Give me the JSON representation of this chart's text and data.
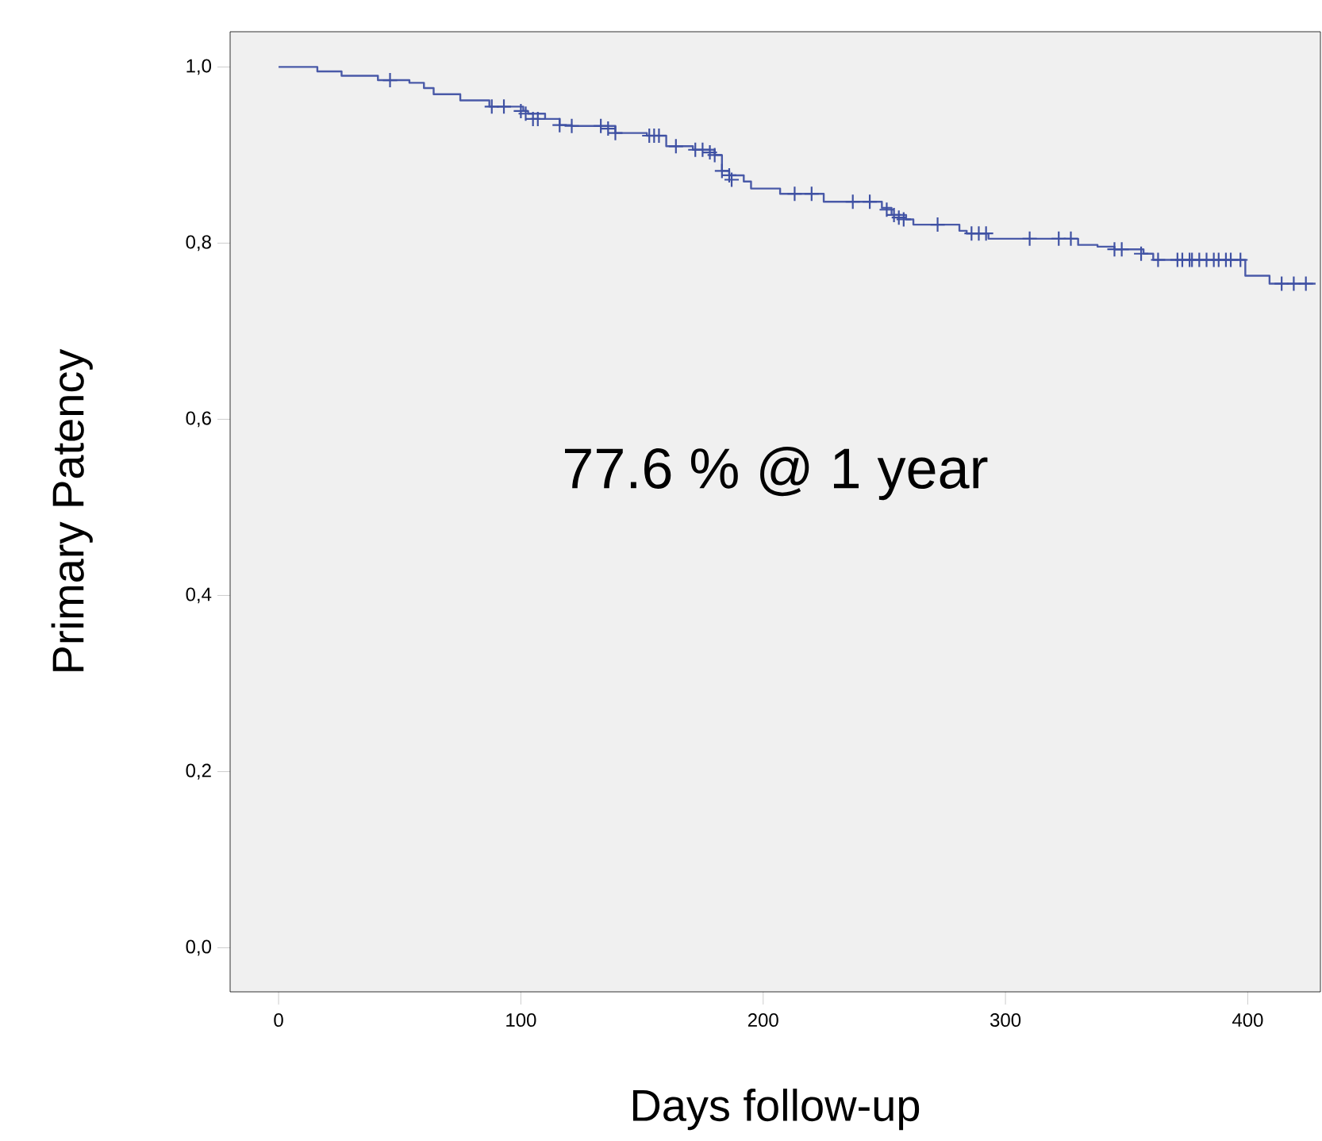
{
  "chart_data": {
    "type": "step",
    "xlabel": "Days follow-up",
    "ylabel": "Primary Patency",
    "annotations": [
      "77.6 % @ 1 year"
    ],
    "xlim": [
      -20,
      430
    ],
    "ylim": [
      -0.05,
      1.04
    ],
    "xticks": [
      0,
      100,
      200,
      300,
      400
    ],
    "yticks": [
      {
        "value": 0,
        "label": "0,0"
      },
      {
        "value": 0.2,
        "label": "0,2"
      },
      {
        "value": 0.4,
        "label": "0,4"
      },
      {
        "value": 0.6,
        "label": "0,6"
      },
      {
        "value": 0.8,
        "label": "0,8"
      },
      {
        "value": 1.0,
        "label": "1,0"
      }
    ],
    "grid": false,
    "series": [
      {
        "marker": "none",
        "color": "#4a5aa8",
        "x": [
          0,
          16,
          26,
          41,
          54,
          60,
          64,
          75,
          87,
          101,
          103,
          110,
          116,
          121,
          139,
          152,
          160,
          171,
          180,
          183,
          186,
          192,
          195,
          207,
          225,
          249,
          253,
          259,
          262,
          281,
          284,
          293,
          330,
          338,
          345,
          357,
          361,
          399,
          409,
          428
        ],
        "values": [
          1.0,
          0.995,
          0.99,
          0.985,
          0.982,
          0.976,
          0.969,
          0.962,
          0.955,
          0.95,
          0.947,
          0.941,
          0.934,
          0.933,
          0.925,
          0.922,
          0.91,
          0.906,
          0.9,
          0.882,
          0.877,
          0.87,
          0.862,
          0.856,
          0.847,
          0.84,
          0.832,
          0.827,
          0.821,
          0.814,
          0.811,
          0.805,
          0.798,
          0.796,
          0.793,
          0.788,
          0.781,
          0.763,
          0.754,
          0.754
        ]
      },
      {
        "type": "scatter",
        "marker": "cross",
        "color": "#3f51a3",
        "x": [
          46,
          88,
          93,
          100,
          102,
          105,
          107,
          116,
          121,
          133,
          136,
          139,
          153,
          155,
          157,
          164,
          172,
          175,
          178,
          180,
          183,
          186,
          187,
          213,
          220,
          237,
          244,
          251,
          254,
          256,
          258,
          272,
          286,
          289,
          292,
          310,
          322,
          327,
          345,
          348,
          356,
          363,
          371,
          373,
          376,
          377,
          380,
          383,
          386,
          388,
          391,
          393,
          397,
          414,
          419,
          424
        ],
        "values": [
          0.985,
          0.955,
          0.955,
          0.95,
          0.947,
          0.941,
          0.941,
          0.934,
          0.933,
          0.933,
          0.93,
          0.925,
          0.922,
          0.922,
          0.922,
          0.91,
          0.906,
          0.906,
          0.903,
          0.9,
          0.882,
          0.877,
          0.872,
          0.856,
          0.856,
          0.847,
          0.847,
          0.838,
          0.832,
          0.829,
          0.827,
          0.821,
          0.811,
          0.811,
          0.811,
          0.805,
          0.805,
          0.805,
          0.793,
          0.793,
          0.788,
          0.781,
          0.781,
          0.781,
          0.781,
          0.781,
          0.781,
          0.781,
          0.781,
          0.781,
          0.781,
          0.781,
          0.781,
          0.754,
          0.754,
          0.754
        ]
      }
    ]
  }
}
